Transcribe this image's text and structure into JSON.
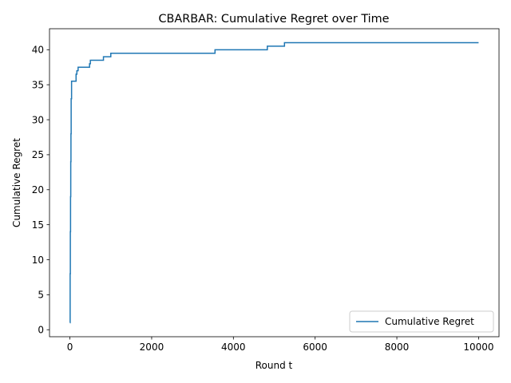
{
  "colors": {
    "series_line": "#1f77b4",
    "axes": "#000000",
    "background": "#ffffff",
    "legend_border": "#cccccc"
  },
  "chart_data": {
    "type": "line",
    "title": "CBARBAR: Cumulative Regret over Time",
    "xlabel": "Round t",
    "ylabel": "Cumulative Regret",
    "xlim": [
      -500,
      10500
    ],
    "ylim": [
      -1.0,
      43.0
    ],
    "grid": false,
    "legend_position": "lower right",
    "x_ticks": [
      0,
      2000,
      4000,
      6000,
      8000,
      10000
    ],
    "x_tick_labels": [
      "0",
      "2000",
      "4000",
      "6000",
      "8000",
      "10000"
    ],
    "y_ticks": [
      0,
      5,
      10,
      15,
      20,
      25,
      30,
      35,
      40
    ],
    "y_tick_labels": [
      "0",
      "5",
      "10",
      "15",
      "20",
      "25",
      "30",
      "35",
      "40"
    ],
    "series": [
      {
        "name": "Cumulative Regret",
        "color": "#1f77b4",
        "step": true,
        "x": [
          1,
          5,
          10,
          15,
          20,
          25,
          30,
          40,
          50,
          150,
          170,
          200,
          480,
          500,
          820,
          1000,
          3550,
          4830,
          5250,
          10000
        ],
        "y": [
          1.0,
          8.0,
          14.0,
          19.0,
          24.0,
          28.0,
          33.0,
          35.5,
          35.5,
          36.5,
          37.0,
          37.5,
          38.0,
          38.5,
          39.0,
          39.5,
          40.0,
          40.5,
          41.0,
          41.0
        ]
      }
    ]
  }
}
